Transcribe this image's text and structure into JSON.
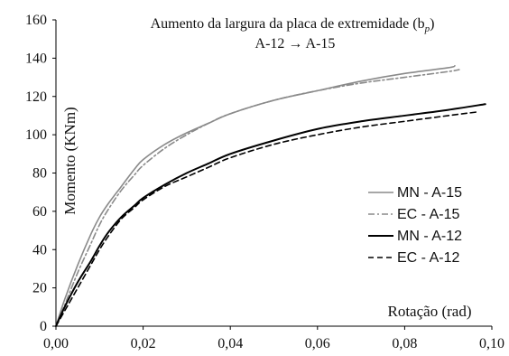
{
  "chart_data": {
    "type": "line",
    "title": "Aumento da largura da placa de extremidade (b",
    "title_symbol_sub": "p",
    "title_close": ")",
    "subtitle": "A-12 → A-15",
    "xlabel": "Rotação  (rad)",
    "ylabel": "Momento  (KNm)",
    "xlim": [
      0,
      0.1
    ],
    "ylim": [
      0,
      160
    ],
    "xticks": [
      "0,00",
      "0,02",
      "0,04",
      "0,06",
      "0,08",
      "0,10"
    ],
    "xtick_values": [
      0,
      0.02,
      0.04,
      0.06,
      0.08,
      0.1
    ],
    "yticks": [
      "0",
      "20",
      "40",
      "60",
      "80",
      "100",
      "120",
      "140",
      "160"
    ],
    "ytick_values": [
      0,
      20,
      40,
      60,
      80,
      100,
      120,
      140,
      160
    ],
    "grid": false,
    "legend_position": "right",
    "series": [
      {
        "name": "MN - A-15",
        "color": "#8a8a8a",
        "style": "solid",
        "x": [
          0,
          0.002,
          0.005,
          0.008,
          0.01,
          0.012,
          0.015,
          0.018,
          0.02,
          0.025,
          0.03,
          0.035,
          0.04,
          0.05,
          0.06,
          0.07,
          0.08,
          0.09,
          0.0915
        ],
        "y": [
          0,
          14,
          32,
          48,
          57,
          64,
          73,
          82,
          87,
          95,
          101,
          106,
          111,
          118,
          123,
          128,
          132,
          135,
          136
        ]
      },
      {
        "name": "EC - A-15",
        "color": "#8a8a8a",
        "style": "dashdot",
        "x": [
          0,
          0.002,
          0.005,
          0.008,
          0.01,
          0.012,
          0.015,
          0.018,
          0.02,
          0.025,
          0.03,
          0.035,
          0.04,
          0.05,
          0.06,
          0.07,
          0.08,
          0.09,
          0.0925
        ],
        "y": [
          0,
          11,
          28,
          43,
          53,
          61,
          71,
          79,
          84,
          93,
          100,
          106,
          111,
          118,
          123,
          127,
          130,
          133,
          134
        ]
      },
      {
        "name": "MN - A-12",
        "color": "#000000",
        "style": "solid-thick",
        "x": [
          0,
          0.002,
          0.005,
          0.008,
          0.01,
          0.012,
          0.015,
          0.018,
          0.02,
          0.025,
          0.03,
          0.035,
          0.04,
          0.05,
          0.06,
          0.07,
          0.08,
          0.09,
          0.0985
        ],
        "y": [
          0,
          10,
          23,
          34,
          42,
          49,
          57,
          63,
          67,
          74,
          80,
          85,
          90,
          97,
          103,
          107,
          110,
          113,
          116
        ]
      },
      {
        "name": "EC - A-12",
        "color": "#000000",
        "style": "dashed",
        "x": [
          0,
          0.002,
          0.005,
          0.008,
          0.01,
          0.012,
          0.015,
          0.018,
          0.02,
          0.025,
          0.03,
          0.035,
          0.04,
          0.05,
          0.06,
          0.07,
          0.08,
          0.09,
          0.097
        ],
        "y": [
          0,
          8,
          20,
          32,
          40,
          47,
          56,
          62,
          66,
          73,
          78,
          83,
          88,
          95,
          100,
          104,
          107,
          110,
          112
        ]
      }
    ]
  }
}
